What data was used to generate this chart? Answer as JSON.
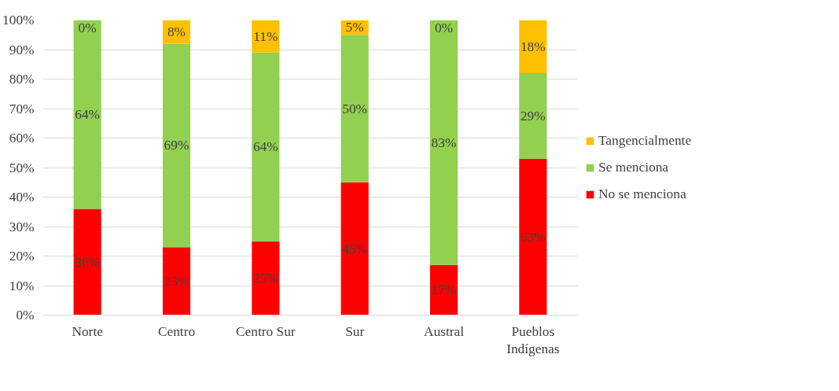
{
  "chart_data": {
    "type": "bar",
    "stacked": true,
    "categories": [
      "Norte",
      "Centro",
      "Centro Sur",
      "Sur",
      "Austral",
      "Pueblos Indígenas"
    ],
    "series": [
      {
        "name": "No se menciona",
        "color": "#ff0000",
        "values": [
          36,
          23,
          25,
          45,
          17,
          53
        ],
        "value_labels": [
          "36%",
          "23%",
          "25%",
          "45%",
          "17%",
          "53%"
        ]
      },
      {
        "name": "Se menciona",
        "color": "#92d050",
        "values": [
          64,
          69,
          64,
          50,
          83,
          29
        ],
        "value_labels": [
          "64%",
          "69%",
          "64%",
          "50%",
          "83%",
          "29%"
        ]
      },
      {
        "name": "Tangencialmente",
        "color": "#ffc000",
        "values": [
          0,
          8,
          11,
          5,
          0,
          18
        ],
        "value_labels": [
          "0%",
          "8%",
          "11%",
          "5%",
          "0%",
          "18%"
        ]
      }
    ],
    "ylim": [
      0,
      100
    ],
    "yticks": [
      {
        "value": 0,
        "label": "0%"
      },
      {
        "value": 10,
        "label": "10%"
      },
      {
        "value": 20,
        "label": "20%"
      },
      {
        "value": 30,
        "label": "30%"
      },
      {
        "value": 40,
        "label": "40%"
      },
      {
        "value": 50,
        "label": "50%"
      },
      {
        "value": 60,
        "label": "60%"
      },
      {
        "value": 70,
        "label": "70%"
      },
      {
        "value": 80,
        "label": "80%"
      },
      {
        "value": 90,
        "label": "90%"
      },
      {
        "value": 100,
        "label": "100%"
      }
    ],
    "grid": "y",
    "legend": "right"
  }
}
